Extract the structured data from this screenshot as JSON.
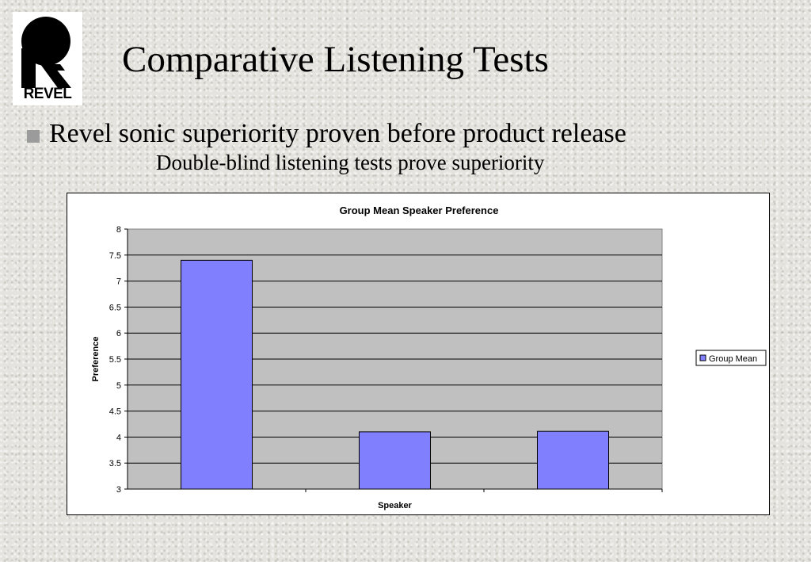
{
  "logo": {
    "text": "REVEL"
  },
  "slide": {
    "title": "Comparative Listening Tests",
    "bullet": "Revel sonic superiority proven before product release",
    "subtitle": "Double-blind listening tests prove superiority"
  },
  "colors": {
    "bar": "#8080ff",
    "plot_area": "#c0c0c0",
    "bullet": "#9b9b9b"
  },
  "chart_data": {
    "type": "bar",
    "title": "Group Mean Speaker Preference",
    "xlabel": "Speaker",
    "ylabel": "Preference",
    "categories": [
      "",
      "",
      ""
    ],
    "series": [
      {
        "name": "Group Mean",
        "values": [
          7.4,
          4.1,
          4.11
        ]
      }
    ],
    "ylim": [
      3,
      8
    ],
    "yticks": [
      "3",
      "3.5",
      "4",
      "4.5",
      "5",
      "5.5",
      "6",
      "6.5",
      "7",
      "7.5",
      "8"
    ],
    "grid": true,
    "legend": "right"
  }
}
